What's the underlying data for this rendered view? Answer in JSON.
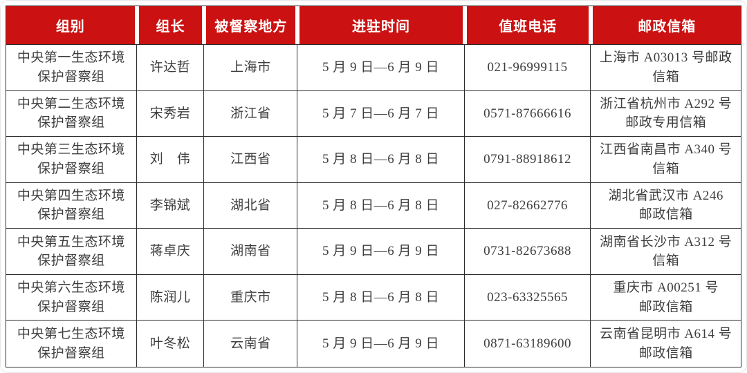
{
  "colors": {
    "header_bg": "#cb1111",
    "header_text": "#ffffff",
    "border": "#2b2b2b",
    "body_text": "#3d3d3d"
  },
  "table": {
    "headers": {
      "group": "组别",
      "leader": "组长",
      "region": "被督察地方",
      "period": "进驻时间",
      "phone": "值班电话",
      "mailbox": "邮政信箱"
    },
    "rows": [
      {
        "group": "中央第一生态环境\n保护督察组",
        "leader": "许达哲",
        "region": "上海市",
        "period": "5 月 9 日—6 月 9 日",
        "phone": "021-96999115",
        "mailbox": "上海市 A03013 号邮政\n信箱"
      },
      {
        "group": "中央第二生态环境\n保护督察组",
        "leader": "宋秀岩",
        "region": "浙江省",
        "period": "5 月 7 日—6 月 7 日",
        "phone": "0571-87666616",
        "mailbox": "浙江省杭州市 A292 号\n邮政专用信箱"
      },
      {
        "group": "中央第三生态环境\n保护督察组",
        "leader": "刘　伟",
        "region": "江西省",
        "period": "5 月 8 日—6 月 8 日",
        "phone": "0791-88918612",
        "mailbox": "江西省南昌市 A340 号\n信箱"
      },
      {
        "group": "中央第四生态环境\n保护督察组",
        "leader": "李锦斌",
        "region": "湖北省",
        "period": "5 月 8 日—6 月 8 日",
        "phone": "027-82662776",
        "mailbox": "湖北省武汉市 A246\n邮政信箱"
      },
      {
        "group": "中央第五生态环境\n保护督察组",
        "leader": "蒋卓庆",
        "region": "湖南省",
        "period": "5 月 9 日—6 月 9 日",
        "phone": "0731-82673688",
        "mailbox": "湖南省长沙市 A312 号\n信箱"
      },
      {
        "group": "中央第六生态环境\n保护督察组",
        "leader": "陈润儿",
        "region": "重庆市",
        "period": "5 月 8 日—6 月 8 日",
        "phone": "023-63325565",
        "mailbox": "重庆市 A00251 号\n邮政信箱"
      },
      {
        "group": "中央第七生态环境\n保护督察组",
        "leader": "叶冬松",
        "region": "云南省",
        "period": "5 月 9 日—6 月 9 日",
        "phone": "0871-63189600",
        "mailbox": "云南省昆明市 A614 号\n邮政信箱"
      }
    ]
  }
}
